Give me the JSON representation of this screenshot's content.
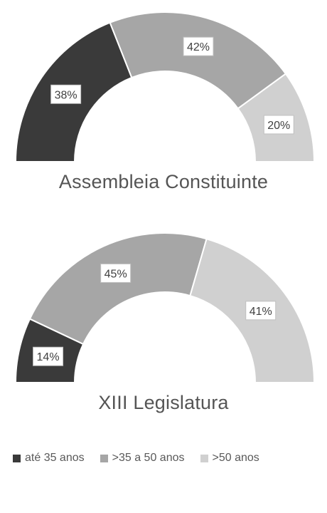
{
  "chart_data": [
    {
      "type": "pie",
      "variant": "half-donut",
      "title": "Assembleia Constituinte",
      "categories": [
        "até 35 anos",
        ">35 a 50 anos",
        ">50 anos"
      ],
      "values": [
        38,
        42,
        20
      ],
      "labels": [
        "38%",
        "42%",
        "20%"
      ]
    },
    {
      "type": "pie",
      "variant": "half-donut",
      "title": "XIII Legislatura",
      "categories": [
        "até 35 anos",
        ">35 a 50 anos",
        ">50 anos"
      ],
      "values": [
        14,
        45,
        41
      ],
      "labels": [
        "14%",
        "45%",
        "41%"
      ]
    }
  ],
  "legend": {
    "position": "bottom",
    "items": [
      {
        "label": "até 35 anos",
        "color": "#3a3a3a"
      },
      {
        "label": ">35 a 50 anos",
        "color": "#a6a6a6"
      },
      {
        "label": ">50 anos",
        "color": "#d0d0d0"
      }
    ]
  }
}
